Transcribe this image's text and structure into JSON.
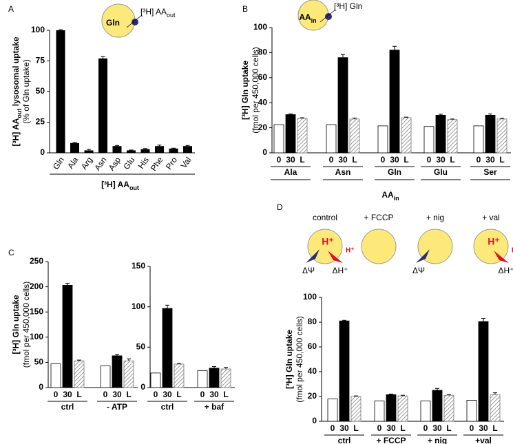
{
  "chart_data": [
    {
      "panel": "A",
      "type": "bar",
      "categories": [
        "Gln",
        "Ala",
        "Arg",
        "Asn",
        "Asp",
        "Glu",
        "His",
        "Phe",
        "Pro",
        "Val"
      ],
      "values": [
        100,
        8,
        2,
        77,
        5.5,
        2,
        3,
        5.5,
        3.5,
        5.5
      ],
      "errors": [
        0.5,
        0.5,
        0.8,
        1.5,
        0.5,
        0.3,
        0.5,
        0.8,
        0.3,
        0.5
      ],
      "color": "#000000",
      "ylim": [
        0,
        100
      ],
      "yticks": [
        0,
        25,
        50,
        75,
        100
      ],
      "ylabel": [
        [
          "[³H] AA",
          "out",
          " lysosomal uptake"
        ],
        "(% of Gln uptake)"
      ],
      "xlabel": [
        "[³H] AA",
        "out"
      ],
      "diagram": {
        "inner": "Gln",
        "outer": [
          "[³H] AA",
          "out"
        ]
      }
    },
    {
      "panel": "B",
      "type": "grouped_bar",
      "categories": [
        "Ala",
        "Asn",
        "Gln",
        "Glu",
        "Ser"
      ],
      "series": [
        {
          "name": "0",
          "color": "#ffffff",
          "values": [
            22.5,
            22.5,
            21.5,
            21,
            21.5
          ]
        },
        {
          "name": "30",
          "color": "#000000",
          "values": [
            30.5,
            76,
            82,
            30,
            30
          ],
          "errors": [
            0.5,
            2.5,
            3,
            0.8,
            1
          ]
        },
        {
          "name": "L",
          "color": "#ffffff",
          "pattern": "hatched",
          "values": [
            27.5,
            27,
            28,
            26.5,
            27
          ],
          "errors": [
            0.5,
            0.8,
            0.5,
            0.5,
            0.5
          ]
        }
      ],
      "ylim": [
        0,
        100
      ],
      "yticks": [
        0,
        20,
        40,
        60,
        80,
        100
      ],
      "ylabel": [
        "[³H] Gln uptake",
        "(fmol per 450,000 cells)"
      ],
      "xlabel": [
        "AA",
        "in"
      ],
      "diagram": {
        "inner": [
          "AA",
          "in"
        ],
        "outer": "[³H] Gln"
      }
    },
    {
      "panel": "C",
      "type": "grouped_bar",
      "categories": [
        "ctrl",
        "- ATP"
      ],
      "series": [
        {
          "name": "0",
          "color": "#ffffff",
          "values": [
            47,
            43
          ]
        },
        {
          "name": "30",
          "color": "#000000",
          "values": [
            203,
            63
          ],
          "errors": [
            4,
            3
          ]
        },
        {
          "name": "L",
          "color": "#ffffff",
          "pattern": "hatched",
          "values": [
            53,
            53
          ],
          "errors": [
            1.5,
            4
          ]
        }
      ],
      "ylim": [
        0,
        250
      ],
      "yticks": [
        0,
        50,
        100,
        150,
        200,
        250
      ],
      "ylabel": [
        "[³H] Gln uptake",
        "(fmol per 450,000 cells)"
      ]
    },
    {
      "type": "grouped_bar",
      "categories": [
        "ctrl",
        "+ baf"
      ],
      "series": [
        {
          "name": "0",
          "color": "#ffffff",
          "values": [
            18,
            21
          ]
        },
        {
          "name": "30",
          "color": "#000000",
          "values": [
            98,
            24
          ],
          "errors": [
            4,
            2
          ]
        },
        {
          "name": "L",
          "color": "#ffffff",
          "pattern": "hatched",
          "values": [
            29,
            23
          ],
          "errors": [
            1,
            2
          ]
        }
      ],
      "ylim": [
        0,
        150
      ],
      "yticks": [
        0,
        50,
        100,
        150
      ]
    },
    {
      "panel": "D",
      "type": "grouped_bar",
      "categories": [
        "ctrl",
        "+ FCCP",
        "+ nig",
        "+val"
      ],
      "series": [
        {
          "name": "0",
          "color": "#ffffff",
          "values": [
            18,
            16.5,
            16.5,
            17
          ]
        },
        {
          "name": "30",
          "color": "#000000",
          "values": [
            81,
            21.5,
            25,
            80.5
          ],
          "errors": [
            0.5,
            0.5,
            1.5,
            2.5
          ]
        },
        {
          "name": "L",
          "color": "#ffffff",
          "pattern": "hatched",
          "values": [
            20,
            20.5,
            21,
            21.5
          ],
          "errors": [
            0.5,
            0.5,
            0.5,
            1.5
          ]
        }
      ],
      "ylim": [
        0,
        100
      ],
      "yticks": [
        0,
        20,
        40,
        60,
        80,
        100
      ],
      "ylabel": [
        "[³H] Gln uptake",
        "(fmol per 450,000 cells)"
      ],
      "conditions": [
        "control",
        "+ FCCP",
        "+ nig",
        "+ val"
      ],
      "potential": "ΔΨ",
      "gradient": "ΔH⁺",
      "proton": "H⁺"
    }
  ]
}
